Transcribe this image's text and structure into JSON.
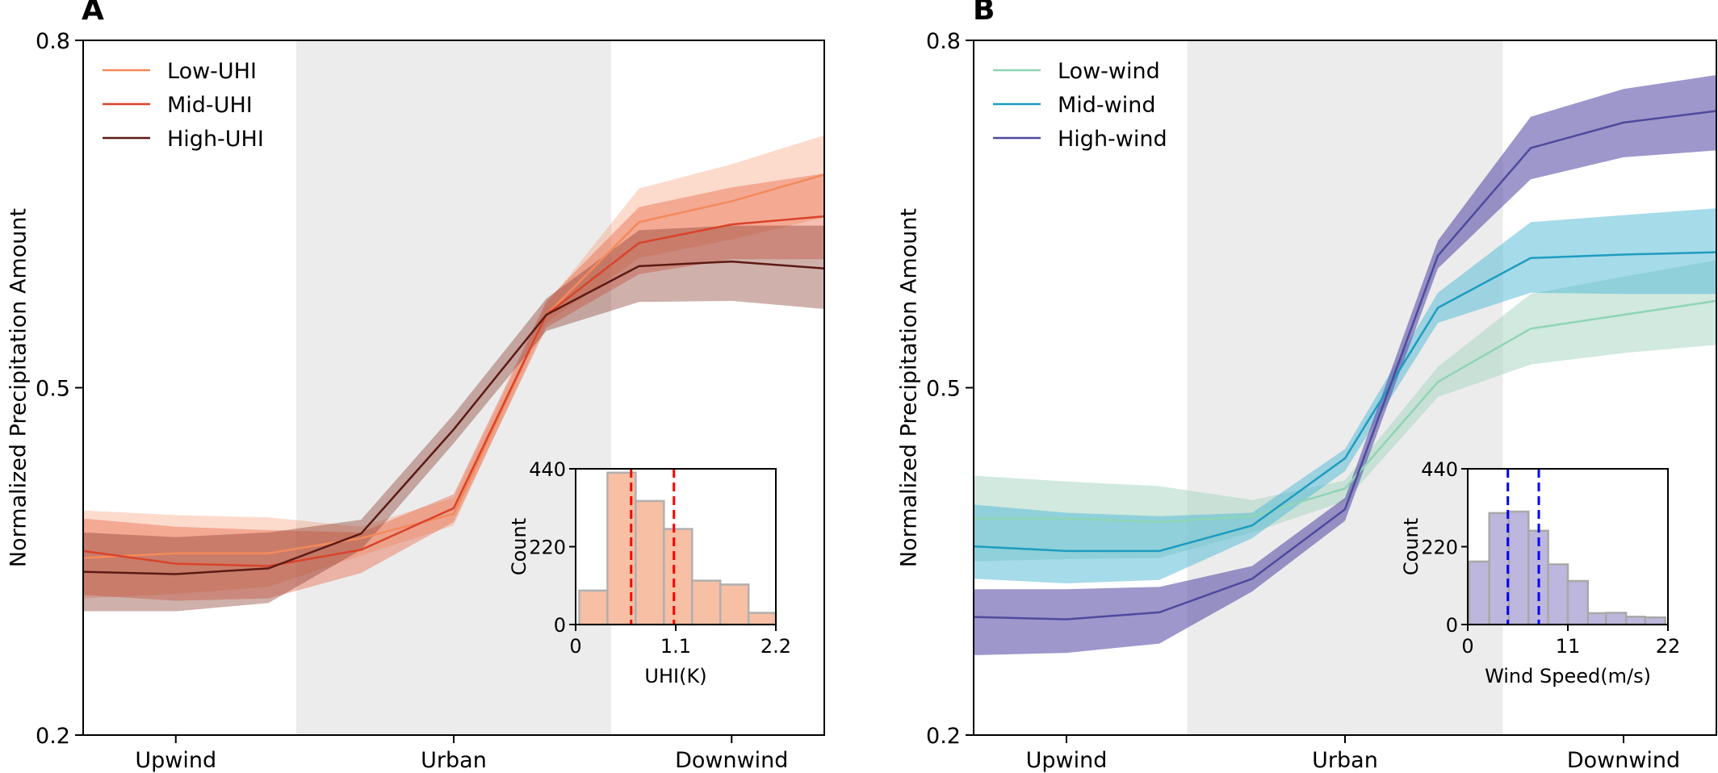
{
  "chart_data": [
    {
      "panel": "A",
      "type": "line",
      "ylabel": "Normalized Precipitation Amount",
      "xlabel": "",
      "ylim": [
        0.2,
        0.8
      ],
      "yticks": [
        0.2,
        0.5,
        0.8
      ],
      "ytick_labels": [
        "0.2",
        "0.5",
        "0.8"
      ],
      "x": [
        0,
        1,
        2,
        3,
        4,
        5,
        6,
        7,
        8
      ],
      "xlim": [
        0,
        8
      ],
      "xticks": [
        1,
        4,
        7
      ],
      "xtick_labels": [
        "Upwind",
        "Urban",
        "Downwind"
      ],
      "shaded_region": {
        "label": "Urban area",
        "x_range": [
          2.3,
          5.7
        ],
        "color": "#ececec"
      },
      "legend_position": "top-left",
      "series": [
        {
          "name": "Low-UHI",
          "color": "#f4895a",
          "band_color": "#f4895a",
          "band_opacity": 0.3,
          "values": [
            0.353,
            0.357,
            0.357,
            0.37,
            0.391,
            0.563,
            0.643,
            0.661,
            0.684
          ],
          "upper": [
            0.394,
            0.39,
            0.388,
            0.38,
            0.405,
            0.572,
            0.672,
            0.693,
            0.718
          ],
          "lower": [
            0.318,
            0.322,
            0.328,
            0.355,
            0.381,
            0.556,
            0.612,
            0.628,
            0.647
          ]
        },
        {
          "name": "Mid-UHI",
          "color": "#d9432a",
          "band_color": "#e8603c",
          "band_opacity": 0.4,
          "values": [
            0.359,
            0.348,
            0.346,
            0.36,
            0.396,
            0.563,
            0.625,
            0.641,
            0.648
          ],
          "upper": [
            0.387,
            0.38,
            0.377,
            0.375,
            0.408,
            0.575,
            0.656,
            0.673,
            0.685
          ],
          "lower": [
            0.321,
            0.316,
            0.318,
            0.34,
            0.384,
            0.552,
            0.598,
            0.611,
            0.611
          ]
        },
        {
          "name": "High-UHI",
          "color": "#5c1a14",
          "band_color": "#8a3a2e",
          "band_opacity": 0.4,
          "values": [
            0.341,
            0.339,
            0.344,
            0.374,
            0.464,
            0.563,
            0.605,
            0.609,
            0.603
          ],
          "upper": [
            0.375,
            0.371,
            0.375,
            0.386,
            0.477,
            0.577,
            0.636,
            0.64,
            0.64
          ],
          "lower": [
            0.307,
            0.307,
            0.314,
            0.36,
            0.452,
            0.549,
            0.574,
            0.575,
            0.568
          ]
        }
      ],
      "inset": {
        "type": "histogram",
        "xlabel": "UHI(K)",
        "ylabel": "Count",
        "xlim": [
          0,
          2.2
        ],
        "ylim": [
          0,
          440
        ],
        "xticks": [
          0,
          1.1,
          2.2
        ],
        "xtick_labels": [
          "0",
          "1.1",
          "2.2"
        ],
        "yticks": [
          0,
          220,
          440
        ],
        "ytick_labels": [
          "0",
          "220",
          "440"
        ],
        "bar_color": "#f7bfa3",
        "edge_color": "#b0b0b0",
        "bin_edges": [
          0.04,
          0.35,
          0.66,
          0.97,
          1.28,
          1.59,
          1.9,
          2.2
        ],
        "counts": [
          96,
          429,
          349,
          270,
          124,
          113,
          33
        ],
        "vlines": [
          0.61,
          1.08
        ],
        "vline_color": "#ff0000"
      }
    },
    {
      "panel": "B",
      "type": "line",
      "ylabel": "Normalized Precipitation Amount",
      "xlabel": "",
      "ylim": [
        0.2,
        0.8
      ],
      "yticks": [
        0.2,
        0.5,
        0.8
      ],
      "ytick_labels": [
        "0.2",
        "0.5",
        "0.8"
      ],
      "x": [
        0,
        1,
        2,
        3,
        4,
        5,
        6,
        7,
        8
      ],
      "xlim": [
        0,
        8
      ],
      "xticks": [
        1,
        4,
        7
      ],
      "xtick_labels": [
        "Upwind",
        "Urban",
        "Downwind"
      ],
      "shaded_region": {
        "label": "Urban area",
        "x_range": [
          2.3,
          5.7
        ],
        "color": "#ececec"
      },
      "legend_position": "top-left",
      "series": [
        {
          "name": "Low-wind",
          "color": "#8fd5b5",
          "band_color": "#a3d4bf",
          "band_opacity": 0.5,
          "values": [
            0.387,
            0.387,
            0.384,
            0.389,
            0.413,
            0.505,
            0.551,
            0.563,
            0.575
          ],
          "upper": [
            0.424,
            0.419,
            0.415,
            0.403,
            0.42,
            0.518,
            0.581,
            0.596,
            0.61
          ],
          "lower": [
            0.35,
            0.352,
            0.353,
            0.375,
            0.402,
            0.492,
            0.52,
            0.53,
            0.537
          ]
        },
        {
          "name": "Mid-wind",
          "color": "#1e9cc0",
          "band_color": "#4eb8d6",
          "band_opacity": 0.5,
          "values": [
            0.363,
            0.359,
            0.359,
            0.381,
            0.439,
            0.569,
            0.612,
            0.615,
            0.617
          ],
          "upper": [
            0.399,
            0.392,
            0.389,
            0.392,
            0.447,
            0.582,
            0.643,
            0.649,
            0.655
          ],
          "lower": [
            0.335,
            0.331,
            0.334,
            0.37,
            0.428,
            0.556,
            0.582,
            0.581,
            0.581
          ]
        },
        {
          "name": "High-wind",
          "color": "#4e4a9e",
          "band_color": "#5b52a8",
          "band_opacity": 0.6,
          "values": [
            0.302,
            0.3,
            0.306,
            0.335,
            0.395,
            0.614,
            0.707,
            0.729,
            0.739
          ],
          "upper": [
            0.326,
            0.326,
            0.328,
            0.346,
            0.405,
            0.627,
            0.734,
            0.758,
            0.77
          ],
          "lower": [
            0.269,
            0.271,
            0.279,
            0.324,
            0.385,
            0.603,
            0.68,
            0.699,
            0.705
          ]
        }
      ],
      "inset": {
        "type": "histogram",
        "xlabel": "Wind Speed(m/s)",
        "ylabel": "Count",
        "xlim": [
          0,
          22
        ],
        "ylim": [
          0,
          440
        ],
        "xticks": [
          0,
          11,
          22
        ],
        "xtick_labels": [
          "0",
          "11",
          "22"
        ],
        "yticks": [
          0,
          220,
          440
        ],
        "ytick_labels": [
          "0",
          "220",
          "440"
        ],
        "bar_color": "#bdb6dd",
        "edge_color": "#a8a8a8",
        "bin_edges": [
          0.15,
          2.37,
          4.52,
          6.68,
          8.84,
          11.0,
          13.2,
          15.2,
          17.4,
          19.5,
          21.7
        ],
        "counts": [
          178,
          315,
          319,
          265,
          170,
          123,
          32,
          33,
          22,
          20
        ],
        "vlines": [
          4.41,
          7.81
        ],
        "vline_color": "#0000ff"
      }
    }
  ]
}
